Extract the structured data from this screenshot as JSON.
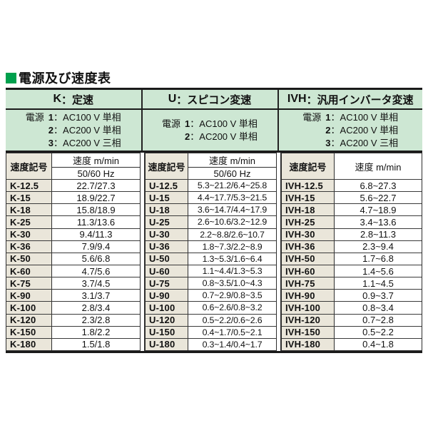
{
  "title": "電源及び速度表",
  "colors": {
    "accent_green": "#00a04d",
    "band_green": "#cde7d3",
    "code_beige": "#eae6da",
    "border_dark": "#1b1b1b"
  },
  "sections": [
    {
      "header_code": "K",
      "header_rest": "：定速",
      "power_label": "電源",
      "power_lines": [
        {
          "num": "1",
          "rest": "：AC100 V 単相"
        },
        {
          "num": "2",
          "rest": "：AC200 V 単相"
        },
        {
          "num": "3",
          "rest": "：AC200 V 三相"
        }
      ],
      "col_code": "速度記号",
      "col_speed": "速度 m/min",
      "col_hz": "50/60 Hz",
      "rows": [
        {
          "code": "K-12.5",
          "speed": "22.7/27.3"
        },
        {
          "code": "K-15",
          "speed": "18.9/22.7"
        },
        {
          "code": "K-18",
          "speed": "15.8/18.9"
        },
        {
          "code": "K-25",
          "speed": "11.3/13.6"
        },
        {
          "code": "K-30",
          "speed": "9.4/11.3"
        },
        {
          "code": "K-36",
          "speed": "7.9/9.4"
        },
        {
          "code": "K-50",
          "speed": "5.6/6.8"
        },
        {
          "code": "K-60",
          "speed": "4.7/5.6"
        },
        {
          "code": "K-75",
          "speed": "3.7/4.5"
        },
        {
          "code": "K-90",
          "speed": "3.1/3.7"
        },
        {
          "code": "K-100",
          "speed": "2.8/3.4"
        },
        {
          "code": "K-120",
          "speed": "2.3/2.8"
        },
        {
          "code": "K-150",
          "speed": "1.8/2.2"
        },
        {
          "code": "K-180",
          "speed": "1.5/1.8"
        }
      ]
    },
    {
      "header_code": "U",
      "header_rest": "：スピコン変速",
      "power_label": "電源",
      "power_lines": [
        {
          "num": "1",
          "rest": "：AC100 V 単相"
        },
        {
          "num": "2",
          "rest": "：AC200 V 単相"
        }
      ],
      "col_code": "速度記号",
      "col_speed": "速度 m/min",
      "col_hz": "50/60 Hz",
      "rows": [
        {
          "code": "U-12.5",
          "speed": "5.3~21.2/6.4~25.8"
        },
        {
          "code": "U-15",
          "speed": "4.4~17.7/5.3~21.5"
        },
        {
          "code": "U-18",
          "speed": "3.6~14.7/4.4~17.9"
        },
        {
          "code": "U-25",
          "speed": "2.6~10.6/3.2~12.9"
        },
        {
          "code": "U-30",
          "speed": "2.2~8.8/2.6~10.7"
        },
        {
          "code": "U-36",
          "speed": "1.8~7.3/2.2~8.9"
        },
        {
          "code": "U-50",
          "speed": "1.3~5.3/1.6~6.4"
        },
        {
          "code": "U-60",
          "speed": "1.1~4.4/1.3~5.3"
        },
        {
          "code": "U-75",
          "speed": "0.8~3.5/1.0~4.3"
        },
        {
          "code": "U-90",
          "speed": "0.7~2.9/0.8~3.5"
        },
        {
          "code": "U-100",
          "speed": "0.6~2.6/0.8~3.2"
        },
        {
          "code": "U-120",
          "speed": "0.5~2.2/0.6~2.6"
        },
        {
          "code": "U-150",
          "speed": "0.4~1.7/0.5~2.1"
        },
        {
          "code": "U-180",
          "speed": "0.3~1.4/0.4~1.7"
        }
      ]
    },
    {
      "header_code": "IVH",
      "header_rest": "：汎用インバータ変速",
      "power_label": "電源",
      "power_lines": [
        {
          "num": "1",
          "rest": "：AC100 V 単相"
        },
        {
          "num": "2",
          "rest": "：AC200 V 単相"
        },
        {
          "num": "3",
          "rest": "：AC200 V 三相"
        }
      ],
      "col_code": "速度記号",
      "col_speed": "速度 m/min",
      "col_hz": null,
      "rows": [
        {
          "code": "IVH-12.5",
          "speed": "6.8~27.3"
        },
        {
          "code": "IVH-15",
          "speed": "5.6~22.7"
        },
        {
          "code": "IVH-18",
          "speed": "4.7~18.9"
        },
        {
          "code": "IVH-25",
          "speed": "3.4~13.6"
        },
        {
          "code": "IVH-30",
          "speed": "2.8~11.3"
        },
        {
          "code": "IVH-36",
          "speed": "2.3~9.4"
        },
        {
          "code": "IVH-50",
          "speed": "1.7~6.8"
        },
        {
          "code": "IVH-60",
          "speed": "1.4~5.6"
        },
        {
          "code": "IVH-75",
          "speed": "1.1~4.5"
        },
        {
          "code": "IVH-90",
          "speed": "0.9~3.7"
        },
        {
          "code": "IVH-100",
          "speed": "0.8~3.4"
        },
        {
          "code": "IVH-120",
          "speed": "0.7~2.8"
        },
        {
          "code": "IVH-150",
          "speed": "0.5~2.2"
        },
        {
          "code": "IVH-180",
          "speed": "0.4~1.8"
        }
      ]
    }
  ]
}
